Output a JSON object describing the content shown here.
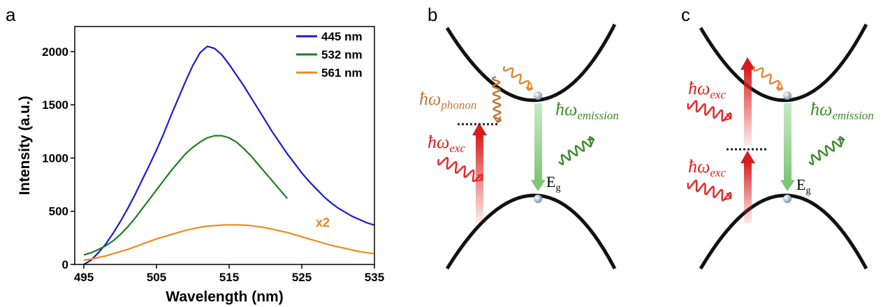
{
  "chart_data": {
    "type": "line",
    "panel_label": "a",
    "xlabel": "Wavelength (nm)",
    "ylabel": "Intensity (a.u.)",
    "xlim": [
      493.75,
      535
    ],
    "xticks": [
      495,
      505,
      515,
      525,
      535
    ],
    "ylim": [
      0,
      2236
    ],
    "yticks": [
      0,
      500,
      1000,
      1500,
      2000
    ],
    "legend": "upper right",
    "annotation": "x2",
    "x": [
      495,
      496,
      497,
      498,
      499,
      500,
      501,
      502,
      503,
      504,
      505,
      506,
      507,
      508,
      509,
      510,
      511,
      512,
      513,
      514,
      515,
      516,
      517,
      518,
      519,
      520,
      521,
      522,
      523,
      524,
      525,
      526,
      527,
      528,
      529,
      530,
      531,
      532,
      533,
      534,
      535
    ],
    "series": [
      {
        "name": "445 nm",
        "color": "#1a1ad6",
        "values": [
          0,
          40,
          110,
          190,
          290,
          400,
          520,
          650,
          790,
          930,
          1075,
          1230,
          1400,
          1560,
          1720,
          1870,
          1990,
          2050,
          2030,
          1970,
          1880,
          1780,
          1680,
          1570,
          1460,
          1350,
          1240,
          1140,
          1040,
          950,
          860,
          780,
          710,
          640,
          580,
          530,
          490,
          450,
          420,
          390,
          370
        ]
      },
      {
        "name": "532 nm",
        "color": "#1e7d1e",
        "values": [
          90,
          110,
          140,
          175,
          220,
          280,
          350,
          430,
          520,
          610,
          700,
          790,
          880,
          960,
          1040,
          1100,
          1150,
          1190,
          1210,
          1210,
          1190,
          1150,
          1090,
          1020,
          940,
          860,
          780,
          700,
          620,
          null,
          null,
          null,
          null,
          null,
          null,
          null,
          null,
          null,
          null,
          null,
          null
        ]
      },
      {
        "name": "561 nm",
        "color": "#f08a1c",
        "values": [
          40,
          50,
          65,
          80,
          100,
          120,
          140,
          165,
          190,
          215,
          240,
          260,
          280,
          300,
          320,
          335,
          350,
          360,
          365,
          370,
          372,
          372,
          370,
          365,
          355,
          345,
          330,
          315,
          300,
          280,
          260,
          240,
          220,
          200,
          180,
          165,
          150,
          135,
          120,
          110,
          100
        ]
      }
    ]
  },
  "panels": {
    "b": {
      "label": "b",
      "phonon": {
        "main": "ħω",
        "sub": "phonon"
      },
      "exc": {
        "main": "ħω",
        "sub": "exc"
      },
      "emission": {
        "main": "ħω",
        "sub": "emission"
      },
      "gap": {
        "main": "E",
        "sub": "g"
      }
    },
    "c": {
      "label": "c",
      "exc_upper": {
        "main": "ħω",
        "sub": "exc"
      },
      "exc_lower": {
        "main": "ħω",
        "sub": "exc"
      },
      "emission": {
        "main": "ħω",
        "sub": "emission"
      },
      "gap": {
        "main": "E",
        "sub": "g"
      }
    }
  }
}
